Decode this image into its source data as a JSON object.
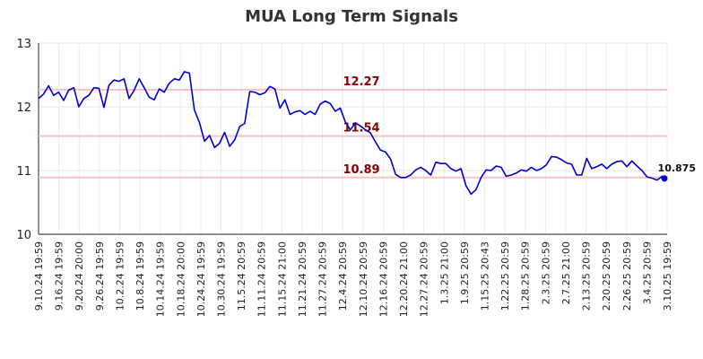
{
  "chart_data": {
    "type": "line",
    "title": "MUA Long Term Signals",
    "xlabel": "",
    "ylabel": "",
    "ylim": [
      10,
      13
    ],
    "yticks": [
      "10",
      "11",
      "12",
      "13"
    ],
    "grid": true,
    "x_tick_labels": [
      "9.10.24 19:59",
      "9.16.24 19:59",
      "9.20.24 20:00",
      "9.26.24 19:59",
      "10.2.24 19:59",
      "10.8.24 19:59",
      "10.14.24 19:59",
      "10.18.24 20:00",
      "10.24.24 19:59",
      "10.30.24 19:59",
      "11.5.24 20:59",
      "11.11.24 20:59",
      "11.15.24 21:00",
      "11.21.24 20:59",
      "11.27.24 20:59",
      "12.4.24 20:59",
      "12.10.24 20:59",
      "12.16.24 20:59",
      "12.20.24 21:00",
      "12.27.24 20:59",
      "1.3.25 21:00",
      "1.9.25 20:59",
      "1.15.25 20:43",
      "1.22.25 20:59",
      "1.28.25 20:59",
      "2.3.25 20:59",
      "2.7.25 21:00",
      "2.13.25 20:59",
      "2.20.25 20:59",
      "2.26.25 20:59",
      "3.4.25 20:59",
      "3.10.25 19:59"
    ],
    "series": [
      {
        "color": "#0000cc",
        "values": [
          12.13,
          12.2,
          12.33,
          12.18,
          12.23,
          12.1,
          12.26,
          12.3,
          12.0,
          12.13,
          12.18,
          12.3,
          12.29,
          11.99,
          12.34,
          12.42,
          12.4,
          12.44,
          12.13,
          12.26,
          12.44,
          12.3,
          12.15,
          12.11,
          12.28,
          12.23,
          12.37,
          12.44,
          12.42,
          12.55,
          12.53,
          11.95,
          11.75,
          11.46,
          11.55,
          11.36,
          11.43,
          11.6,
          11.38,
          11.48,
          11.69,
          11.74,
          12.24,
          12.23,
          12.19,
          12.22,
          12.32,
          12.28,
          11.98,
          12.11,
          11.88,
          11.92,
          11.94,
          11.88,
          11.93,
          11.88,
          12.04,
          12.09,
          12.05,
          11.93,
          11.98,
          11.76,
          11.64,
          11.75,
          11.7,
          11.64,
          11.59,
          11.45,
          11.32,
          11.29,
          11.18,
          10.94,
          10.89,
          10.89,
          10.93,
          11.01,
          11.05,
          11.0,
          10.93,
          11.13,
          11.11,
          11.11,
          11.03,
          10.99,
          11.03,
          10.76,
          10.63,
          10.7,
          10.89,
          11.01,
          11.0,
          11.07,
          11.05,
          10.91,
          10.93,
          10.96,
          11.01,
          10.99,
          11.05,
          11.0,
          11.03,
          11.09,
          11.22,
          11.21,
          11.17,
          11.12,
          11.1,
          10.93,
          10.93,
          11.19,
          11.03,
          11.06,
          11.1,
          11.03,
          11.1,
          11.14,
          11.15,
          11.06,
          11.15,
          11.07,
          11.0,
          10.9,
          10.88,
          10.85,
          10.91,
          10.875
        ]
      }
    ],
    "reference_lines": [
      {
        "value": 12.27,
        "label": "12.27",
        "color": "#8b0000"
      },
      {
        "value": 11.54,
        "label": "11.54",
        "color": "#8b0000"
      },
      {
        "value": 10.89,
        "label": "10.89",
        "color": "#8b0000"
      }
    ],
    "last_point": {
      "value": 10.875,
      "label": "10.875"
    }
  }
}
